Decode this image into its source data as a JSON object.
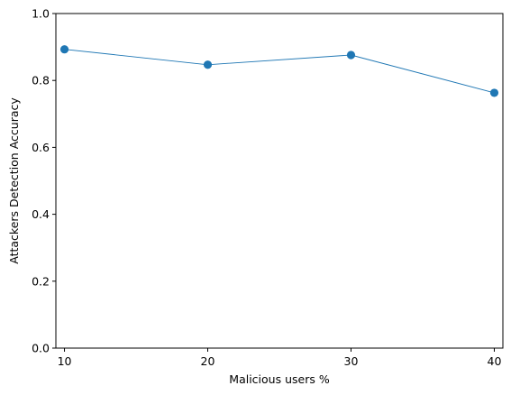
{
  "chart_data": {
    "type": "line",
    "title": "",
    "xlabel": "Malicious users %",
    "ylabel": "Attackers Detection Accuracy",
    "x": [
      10,
      20,
      30,
      40
    ],
    "xticks": [
      "10",
      "20",
      "30",
      "40"
    ],
    "yticks": [
      "0.0",
      "0.2",
      "0.4",
      "0.6",
      "0.8",
      "1.0"
    ],
    "xlim": [
      9.4,
      40.6
    ],
    "ylim": [
      0,
      1
    ],
    "grid": false,
    "series": [
      {
        "values": [
          0.893,
          0.847,
          0.876,
          0.763
        ],
        "color": "#1f77b4",
        "marker": "circle"
      }
    ]
  }
}
